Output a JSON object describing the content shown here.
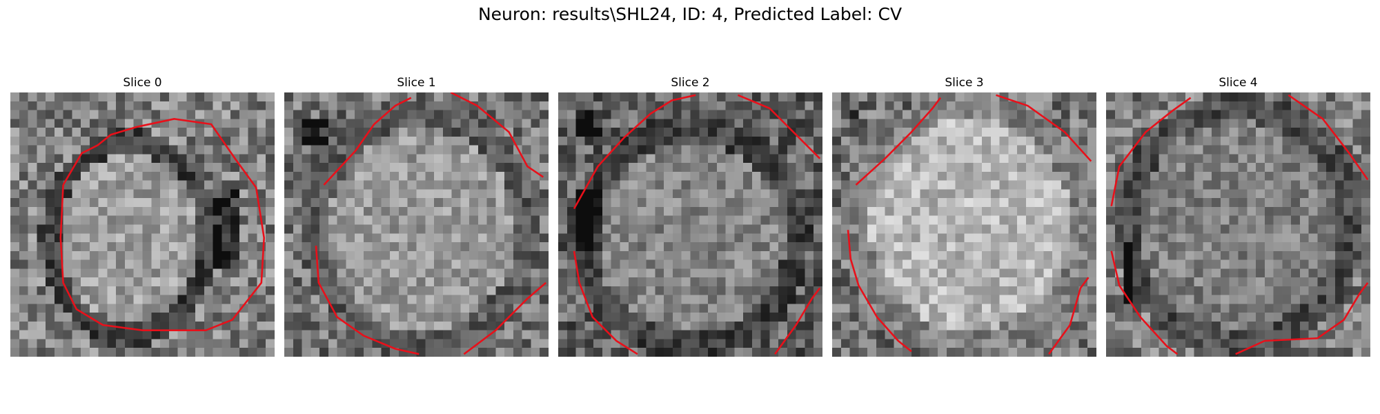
{
  "figure": {
    "title": "Neuron: results\\SHL24, ID: 4, Predicted Label: CV"
  },
  "colors": {
    "contour": "#e8101a",
    "background": "#ffffff"
  },
  "panels": [
    {
      "title": "Slice 0",
      "image": "grayscale-microscopy-crop"
    },
    {
      "title": "Slice 1",
      "image": "grayscale-microscopy-crop"
    },
    {
      "title": "Slice 2",
      "image": "grayscale-microscopy-crop"
    },
    {
      "title": "Slice 3",
      "image": "grayscale-microscopy-crop"
    },
    {
      "title": "Slice 4",
      "image": "grayscale-microscopy-crop"
    }
  ]
}
